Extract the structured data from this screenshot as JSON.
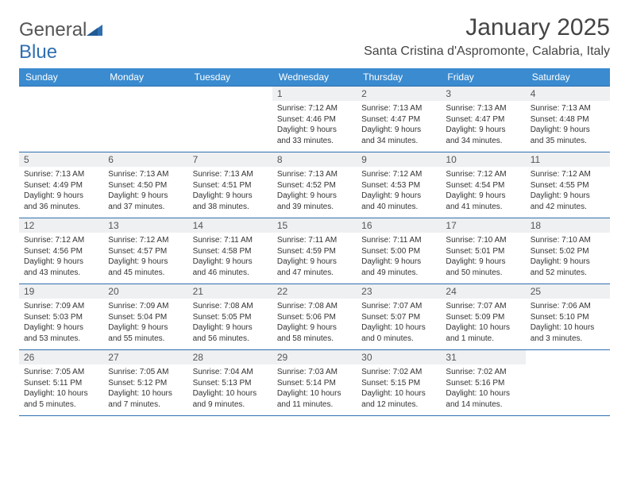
{
  "logo": {
    "part1": "General",
    "part2": "Blue"
  },
  "title": "January 2025",
  "location": "Santa Cristina d'Aspromonte, Calabria, Italy",
  "colors": {
    "header_bg": "#3a8bd0",
    "header_text": "#ffffff",
    "border": "#2f6fb0",
    "daynum_bg": "#eef0f2",
    "text": "#333333"
  },
  "dow": [
    "Sunday",
    "Monday",
    "Tuesday",
    "Wednesday",
    "Thursday",
    "Friday",
    "Saturday"
  ],
  "weeks": [
    [
      null,
      null,
      null,
      {
        "n": "1",
        "sr": "Sunrise: 7:12 AM",
        "ss": "Sunset: 4:46 PM",
        "d1": "Daylight: 9 hours",
        "d2": "and 33 minutes."
      },
      {
        "n": "2",
        "sr": "Sunrise: 7:13 AM",
        "ss": "Sunset: 4:47 PM",
        "d1": "Daylight: 9 hours",
        "d2": "and 34 minutes."
      },
      {
        "n": "3",
        "sr": "Sunrise: 7:13 AM",
        "ss": "Sunset: 4:47 PM",
        "d1": "Daylight: 9 hours",
        "d2": "and 34 minutes."
      },
      {
        "n": "4",
        "sr": "Sunrise: 7:13 AM",
        "ss": "Sunset: 4:48 PM",
        "d1": "Daylight: 9 hours",
        "d2": "and 35 minutes."
      }
    ],
    [
      {
        "n": "5",
        "sr": "Sunrise: 7:13 AM",
        "ss": "Sunset: 4:49 PM",
        "d1": "Daylight: 9 hours",
        "d2": "and 36 minutes."
      },
      {
        "n": "6",
        "sr": "Sunrise: 7:13 AM",
        "ss": "Sunset: 4:50 PM",
        "d1": "Daylight: 9 hours",
        "d2": "and 37 minutes."
      },
      {
        "n": "7",
        "sr": "Sunrise: 7:13 AM",
        "ss": "Sunset: 4:51 PM",
        "d1": "Daylight: 9 hours",
        "d2": "and 38 minutes."
      },
      {
        "n": "8",
        "sr": "Sunrise: 7:13 AM",
        "ss": "Sunset: 4:52 PM",
        "d1": "Daylight: 9 hours",
        "d2": "and 39 minutes."
      },
      {
        "n": "9",
        "sr": "Sunrise: 7:12 AM",
        "ss": "Sunset: 4:53 PM",
        "d1": "Daylight: 9 hours",
        "d2": "and 40 minutes."
      },
      {
        "n": "10",
        "sr": "Sunrise: 7:12 AM",
        "ss": "Sunset: 4:54 PM",
        "d1": "Daylight: 9 hours",
        "d2": "and 41 minutes."
      },
      {
        "n": "11",
        "sr": "Sunrise: 7:12 AM",
        "ss": "Sunset: 4:55 PM",
        "d1": "Daylight: 9 hours",
        "d2": "and 42 minutes."
      }
    ],
    [
      {
        "n": "12",
        "sr": "Sunrise: 7:12 AM",
        "ss": "Sunset: 4:56 PM",
        "d1": "Daylight: 9 hours",
        "d2": "and 43 minutes."
      },
      {
        "n": "13",
        "sr": "Sunrise: 7:12 AM",
        "ss": "Sunset: 4:57 PM",
        "d1": "Daylight: 9 hours",
        "d2": "and 45 minutes."
      },
      {
        "n": "14",
        "sr": "Sunrise: 7:11 AM",
        "ss": "Sunset: 4:58 PM",
        "d1": "Daylight: 9 hours",
        "d2": "and 46 minutes."
      },
      {
        "n": "15",
        "sr": "Sunrise: 7:11 AM",
        "ss": "Sunset: 4:59 PM",
        "d1": "Daylight: 9 hours",
        "d2": "and 47 minutes."
      },
      {
        "n": "16",
        "sr": "Sunrise: 7:11 AM",
        "ss": "Sunset: 5:00 PM",
        "d1": "Daylight: 9 hours",
        "d2": "and 49 minutes."
      },
      {
        "n": "17",
        "sr": "Sunrise: 7:10 AM",
        "ss": "Sunset: 5:01 PM",
        "d1": "Daylight: 9 hours",
        "d2": "and 50 minutes."
      },
      {
        "n": "18",
        "sr": "Sunrise: 7:10 AM",
        "ss": "Sunset: 5:02 PM",
        "d1": "Daylight: 9 hours",
        "d2": "and 52 minutes."
      }
    ],
    [
      {
        "n": "19",
        "sr": "Sunrise: 7:09 AM",
        "ss": "Sunset: 5:03 PM",
        "d1": "Daylight: 9 hours",
        "d2": "and 53 minutes."
      },
      {
        "n": "20",
        "sr": "Sunrise: 7:09 AM",
        "ss": "Sunset: 5:04 PM",
        "d1": "Daylight: 9 hours",
        "d2": "and 55 minutes."
      },
      {
        "n": "21",
        "sr": "Sunrise: 7:08 AM",
        "ss": "Sunset: 5:05 PM",
        "d1": "Daylight: 9 hours",
        "d2": "and 56 minutes."
      },
      {
        "n": "22",
        "sr": "Sunrise: 7:08 AM",
        "ss": "Sunset: 5:06 PM",
        "d1": "Daylight: 9 hours",
        "d2": "and 58 minutes."
      },
      {
        "n": "23",
        "sr": "Sunrise: 7:07 AM",
        "ss": "Sunset: 5:07 PM",
        "d1": "Daylight: 10 hours",
        "d2": "and 0 minutes."
      },
      {
        "n": "24",
        "sr": "Sunrise: 7:07 AM",
        "ss": "Sunset: 5:09 PM",
        "d1": "Daylight: 10 hours",
        "d2": "and 1 minute."
      },
      {
        "n": "25",
        "sr": "Sunrise: 7:06 AM",
        "ss": "Sunset: 5:10 PM",
        "d1": "Daylight: 10 hours",
        "d2": "and 3 minutes."
      }
    ],
    [
      {
        "n": "26",
        "sr": "Sunrise: 7:05 AM",
        "ss": "Sunset: 5:11 PM",
        "d1": "Daylight: 10 hours",
        "d2": "and 5 minutes."
      },
      {
        "n": "27",
        "sr": "Sunrise: 7:05 AM",
        "ss": "Sunset: 5:12 PM",
        "d1": "Daylight: 10 hours",
        "d2": "and 7 minutes."
      },
      {
        "n": "28",
        "sr": "Sunrise: 7:04 AM",
        "ss": "Sunset: 5:13 PM",
        "d1": "Daylight: 10 hours",
        "d2": "and 9 minutes."
      },
      {
        "n": "29",
        "sr": "Sunrise: 7:03 AM",
        "ss": "Sunset: 5:14 PM",
        "d1": "Daylight: 10 hours",
        "d2": "and 11 minutes."
      },
      {
        "n": "30",
        "sr": "Sunrise: 7:02 AM",
        "ss": "Sunset: 5:15 PM",
        "d1": "Daylight: 10 hours",
        "d2": "and 12 minutes."
      },
      {
        "n": "31",
        "sr": "Sunrise: 7:02 AM",
        "ss": "Sunset: 5:16 PM",
        "d1": "Daylight: 10 hours",
        "d2": "and 14 minutes."
      },
      null
    ]
  ]
}
